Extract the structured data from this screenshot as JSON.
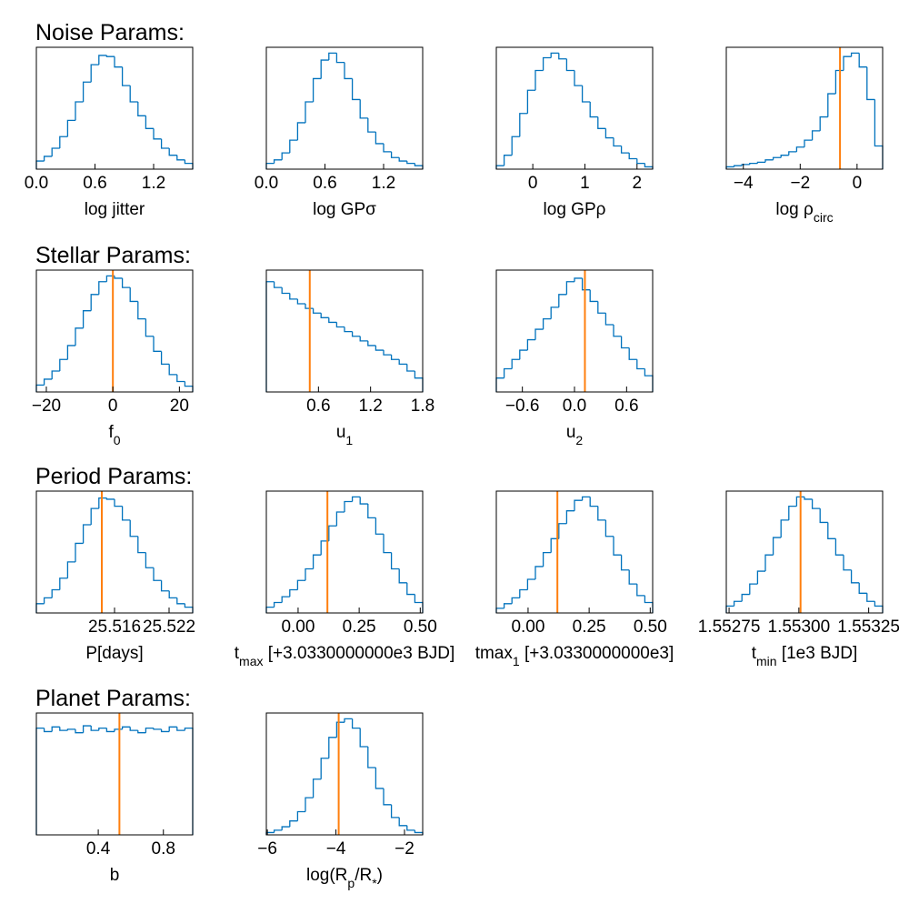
{
  "section_titles": [
    "Noise Params:",
    "Stellar Params:",
    "Period Params:",
    "Planet Params:"
  ],
  "chart_data": [
    {
      "type": "histogram",
      "xlabel": "log jitter",
      "color": "#0072bd",
      "xlim": [
        0,
        1.6
      ],
      "ylim": [
        0,
        105
      ],
      "xticks": [
        {
          "value": 0,
          "label": "0.0"
        },
        0.6,
        1.2
      ],
      "bins": [
        0,
        0.08,
        0.16,
        0.24,
        0.32,
        0.4,
        0.48,
        0.56,
        0.64,
        0.72,
        0.8,
        0.88,
        0.96,
        1.04,
        1.12,
        1.2,
        1.28,
        1.36,
        1.44,
        1.52,
        1.6
      ],
      "counts": [
        7,
        11,
        18,
        28,
        42,
        58,
        75,
        90,
        98,
        97,
        88,
        72,
        58,
        46,
        35,
        26,
        18,
        12,
        8,
        5
      ]
    },
    {
      "type": "histogram",
      "xlabel": "log GPσ",
      "color": "#0072bd",
      "xlim": [
        0,
        1.6
      ],
      "ylim": [
        0,
        105
      ],
      "xticks": [
        {
          "value": 0,
          "label": "0.0"
        },
        0.6,
        1.2
      ],
      "bins": [
        0,
        0.08,
        0.16,
        0.24,
        0.32,
        0.4,
        0.48,
        0.56,
        0.64,
        0.72,
        0.8,
        0.88,
        0.96,
        1.04,
        1.12,
        1.2,
        1.28,
        1.36,
        1.44,
        1.52,
        1.6
      ],
      "counts": [
        5,
        8,
        14,
        25,
        40,
        58,
        78,
        94,
        100,
        92,
        78,
        60,
        44,
        32,
        22,
        15,
        10,
        7,
        5,
        3
      ]
    },
    {
      "type": "histogram",
      "xlabel": "log GPρ",
      "color": "#0072bd",
      "xlim": [
        -0.7,
        2.3
      ],
      "ylim": [
        0,
        105
      ],
      "xticks": [
        0,
        1,
        2
      ],
      "bins": [
        -0.7,
        -0.55,
        -0.4,
        -0.25,
        -0.1,
        0.05,
        0.2,
        0.35,
        0.5,
        0.65,
        0.8,
        0.95,
        1.1,
        1.25,
        1.4,
        1.55,
        1.7,
        1.85,
        2.0,
        2.15,
        2.3
      ],
      "counts": [
        3,
        12,
        28,
        48,
        68,
        85,
        96,
        100,
        95,
        85,
        72,
        58,
        45,
        35,
        27,
        20,
        14,
        9,
        5,
        2
      ]
    },
    {
      "type": "histogram",
      "xlabel": [
        "log ρ",
        {
          "sub": "circ"
        }
      ],
      "color": "#0072bd",
      "xlim": [
        -4.6,
        0.9
      ],
      "ylim": [
        0,
        105
      ],
      "xticks": [
        {
          "value": -4,
          "label": "−4"
        },
        {
          "value": -2,
          "label": "−2"
        },
        0
      ],
      "bins": [
        -4.6,
        -4.325,
        -4.05,
        -3.775,
        -3.5,
        -3.225,
        -2.95,
        -2.675,
        -2.4,
        -2.125,
        -1.85,
        -1.575,
        -1.3,
        -1.025,
        -0.75,
        -0.475,
        -0.2,
        0.075,
        0.35,
        0.625,
        0.9
      ],
      "counts": [
        2,
        3,
        4,
        5,
        6,
        8,
        10,
        12,
        15,
        19,
        25,
        33,
        45,
        65,
        85,
        97,
        100,
        88,
        60,
        20
      ],
      "truth": -0.6,
      "truth_color": "#ff7f0e"
    },
    {
      "type": "histogram",
      "xlabel": [
        "f",
        {
          "sub": "0"
        }
      ],
      "color": "#0072bd",
      "xlim": [
        -23,
        24
      ],
      "ylim": [
        0,
        105
      ],
      "xticks": [
        {
          "value": -20,
          "label": "−20"
        },
        0,
        20
      ],
      "bins": [
        -23,
        -20.65,
        -18.3,
        -15.95,
        -13.6,
        -11.25,
        -8.9,
        -6.55,
        -4.2,
        -1.85,
        0.5,
        2.85,
        5.2,
        7.55,
        9.9,
        12.25,
        14.6,
        16.95,
        19.3,
        21.65,
        24
      ],
      "counts": [
        6,
        11,
        18,
        28,
        40,
        55,
        70,
        84,
        95,
        100,
        98,
        90,
        78,
        63,
        48,
        35,
        24,
        15,
        9,
        5
      ],
      "truth": 0,
      "truth_color": "#ff7f0e"
    },
    {
      "type": "histogram",
      "xlabel": [
        "u",
        {
          "sub": "1"
        }
      ],
      "color": "#0072bd",
      "xlim": [
        0,
        1.8
      ],
      "ylim": [
        0,
        105
      ],
      "xticks": [
        0.6,
        1.2,
        1.8
      ],
      "bins": [
        0,
        0.09,
        0.18,
        0.27,
        0.36,
        0.45,
        0.54,
        0.63,
        0.72,
        0.81,
        0.9,
        0.99,
        1.08,
        1.17,
        1.26,
        1.35,
        1.44,
        1.53,
        1.62,
        1.71,
        1.8
      ],
      "counts": [
        95,
        90,
        85,
        80,
        76,
        72,
        68,
        64,
        60,
        56,
        52,
        48,
        44,
        40,
        36,
        32,
        28,
        24,
        18,
        12
      ],
      "truth": 0.5,
      "truth_color": "#ff7f0e"
    },
    {
      "type": "histogram",
      "xlabel": [
        "u",
        {
          "sub": "2"
        }
      ],
      "color": "#0072bd",
      "xlim": [
        -0.9,
        0.9
      ],
      "ylim": [
        0,
        105
      ],
      "xticks": [
        {
          "value": -0.6,
          "label": "−0.6"
        },
        {
          "value": 0,
          "label": "0.0"
        },
        0.6
      ],
      "bins": [
        -0.9,
        -0.81,
        -0.72,
        -0.63,
        -0.54,
        -0.45,
        -0.36,
        -0.27,
        -0.18,
        -0.09,
        0,
        0.09,
        0.18,
        0.27,
        0.36,
        0.45,
        0.54,
        0.63,
        0.72,
        0.81,
        0.9
      ],
      "counts": [
        12,
        20,
        28,
        36,
        45,
        54,
        63,
        73,
        84,
        95,
        98,
        88,
        78,
        68,
        58,
        48,
        38,
        28,
        20,
        14
      ],
      "truth": 0.12,
      "truth_color": "#ff7f0e"
    },
    {
      "type": "histogram",
      "xlabel": "P[days]",
      "color": "#0072bd",
      "xlim": [
        25.5074,
        25.5246
      ],
      "ylim": [
        0,
        105
      ],
      "xticks": [
        25.516,
        25.522
      ],
      "bins": [
        25.5074,
        25.50826,
        25.50912,
        25.50998,
        25.51084,
        25.5117,
        25.51256,
        25.51342,
        25.51428,
        25.51514,
        25.516,
        25.51686,
        25.51772,
        25.51858,
        25.51944,
        25.5203,
        25.52116,
        25.52202,
        25.52288,
        25.52374,
        25.5246
      ],
      "counts": [
        8,
        13,
        20,
        30,
        44,
        60,
        76,
        90,
        99,
        98,
        92,
        80,
        66,
        52,
        39,
        28,
        19,
        13,
        8,
        5
      ],
      "truth": 25.5146,
      "truth_color": "#ff7f0e"
    },
    {
      "type": "histogram",
      "xlabel": [
        "t",
        {
          "sub": "max"
        },
        "  [+3.0330000000e3  BJD]"
      ],
      "color": "#0072bd",
      "xlim": [
        -0.13,
        0.51
      ],
      "ylim": [
        0,
        105
      ],
      "xticks": [
        {
          "value": 0,
          "label": "0.00"
        },
        0.25,
        {
          "value": 0.5,
          "label": "0.50"
        }
      ],
      "bins": [
        -0.13,
        -0.098,
        -0.066,
        -0.034,
        -0.002,
        0.03,
        0.062,
        0.094,
        0.126,
        0.158,
        0.19,
        0.222,
        0.254,
        0.286,
        0.318,
        0.35,
        0.382,
        0.414,
        0.446,
        0.478,
        0.51
      ],
      "counts": [
        5,
        9,
        14,
        20,
        28,
        38,
        50,
        62,
        75,
        87,
        96,
        100,
        94,
        82,
        68,
        52,
        38,
        26,
        16,
        9
      ],
      "truth": 0.12,
      "truth_color": "#ff7f0e"
    },
    {
      "type": "histogram",
      "xlabel": [
        "tmax",
        {
          "sub": "1"
        },
        " [+3.0330000000e3]"
      ],
      "color": "#0072bd",
      "xlim": [
        -0.13,
        0.51
      ],
      "ylim": [
        0,
        105
      ],
      "xticks": [
        {
          "value": 0,
          "label": "0.00"
        },
        0.25,
        {
          "value": 0.5,
          "label": "0.50"
        }
      ],
      "bins": [
        -0.13,
        -0.098,
        -0.066,
        -0.034,
        -0.002,
        0.03,
        0.062,
        0.094,
        0.126,
        0.158,
        0.19,
        0.222,
        0.254,
        0.286,
        0.318,
        0.35,
        0.382,
        0.414,
        0.446,
        0.478,
        0.51
      ],
      "counts": [
        4,
        8,
        13,
        20,
        29,
        40,
        52,
        64,
        77,
        88,
        97,
        100,
        92,
        80,
        66,
        50,
        37,
        25,
        15,
        9
      ],
      "truth": 0.12,
      "truth_color": "#ff7f0e"
    },
    {
      "type": "histogram",
      "xlabel": [
        "t",
        {
          "sub": "min"
        },
        "  [1e3  BJD]"
      ],
      "color": "#0072bd",
      "xlim": [
        1.55274,
        1.5533
      ],
      "ylim": [
        0,
        105
      ],
      "xticks": [
        1.55275,
        {
          "value": 1.553,
          "label": "1.55300"
        },
        1.55325
      ],
      "bins": [
        1.55274,
        1.552768,
        1.552796,
        1.552824,
        1.552852,
        1.55288,
        1.552908,
        1.552936,
        1.552964,
        1.552992,
        1.55302,
        1.553048,
        1.553076,
        1.553104,
        1.553132,
        1.55316,
        1.553188,
        1.553216,
        1.553244,
        1.553272,
        1.5533
      ],
      "counts": [
        6,
        10,
        16,
        25,
        36,
        50,
        65,
        80,
        92,
        100,
        98,
        90,
        78,
        64,
        50,
        37,
        26,
        17,
        10,
        6
      ],
      "truth": 1.553006,
      "truth_color": "#ff7f0e"
    },
    {
      "type": "histogram",
      "xlabel": "b",
      "color": "#0072bd",
      "xlim": [
        0.02,
        0.98
      ],
      "ylim": [
        0,
        105
      ],
      "xticks": [
        0.4,
        0.8
      ],
      "bins": [
        0.02,
        0.068,
        0.116,
        0.164,
        0.212,
        0.26,
        0.308,
        0.356,
        0.404,
        0.452,
        0.5,
        0.548,
        0.596,
        0.644,
        0.692,
        0.74,
        0.788,
        0.836,
        0.884,
        0.932,
        0.98
      ],
      "counts": [
        92,
        89,
        93,
        90,
        91,
        88,
        94,
        90,
        92,
        89,
        91,
        93,
        90,
        88,
        92,
        91,
        89,
        93,
        90,
        92
      ],
      "truth": 0.53,
      "truth_color": "#ff7f0e"
    },
    {
      "type": "histogram",
      "xlabel": [
        "log(R",
        {
          "sub": "p"
        },
        "/R",
        {
          "sub": "*"
        },
        ")"
      ],
      "color": "#0072bd",
      "xlim": [
        -6.03,
        -1.47
      ],
      "ylim": [
        0,
        105
      ],
      "xticks": [
        {
          "value": -6,
          "label": "−6"
        },
        {
          "value": -4,
          "label": "−4"
        },
        {
          "value": -2,
          "label": "−2"
        }
      ],
      "bins": [
        -6.03,
        -5.802,
        -5.574,
        -5.346,
        -5.118,
        -4.89,
        -4.662,
        -4.434,
        -4.206,
        -3.978,
        -3.75,
        -3.522,
        -3.294,
        -3.066,
        -2.838,
        -2.61,
        -2.382,
        -2.154,
        -1.926,
        -1.698,
        -1.47
      ],
      "counts": [
        2,
        4,
        7,
        12,
        20,
        32,
        48,
        66,
        84,
        97,
        100,
        92,
        76,
        58,
        40,
        26,
        15,
        8,
        4,
        2
      ],
      "truth": -3.92,
      "truth_color": "#ff7f0e"
    }
  ]
}
